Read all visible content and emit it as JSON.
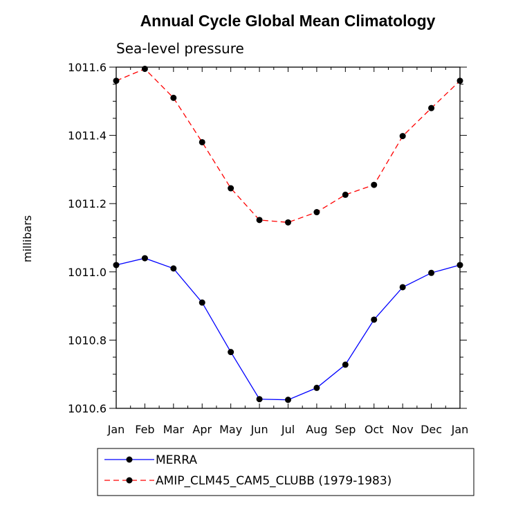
{
  "chart_data": {
    "type": "line",
    "title": "Annual Cycle Global Mean Climatology",
    "subtitle": "Sea-level pressure",
    "xlabel": "",
    "ylabel": "millibars",
    "ylim": [
      1010.6,
      1011.6
    ],
    "yticks": [
      "1010.6",
      "1010.8",
      "1011.0",
      "1011.2",
      "1011.4",
      "1011.6"
    ],
    "categories": [
      "Jan",
      "Feb",
      "Mar",
      "Apr",
      "May",
      "Jun",
      "Jul",
      "Aug",
      "Sep",
      "Oct",
      "Nov",
      "Dec",
      "Jan"
    ],
    "series": [
      {
        "name": "MERRA",
        "color": "#0000ff",
        "dash": "solid",
        "values": [
          1011.02,
          1011.04,
          1011.01,
          1010.91,
          1010.765,
          1010.627,
          1010.625,
          1010.66,
          1010.728,
          1010.86,
          1010.955,
          1010.997,
          1011.02
        ]
      },
      {
        "name": "AMIP_CLM45_CAM5_CLUBB (1979-1983)",
        "color": "#ff0000",
        "dash": "dashed",
        "values": [
          1011.56,
          1011.595,
          1011.51,
          1011.38,
          1011.245,
          1011.152,
          1011.145,
          1011.175,
          1011.226,
          1011.255,
          1011.398,
          1011.48,
          1011.56
        ]
      }
    ],
    "legend_position": "bottom-left"
  }
}
